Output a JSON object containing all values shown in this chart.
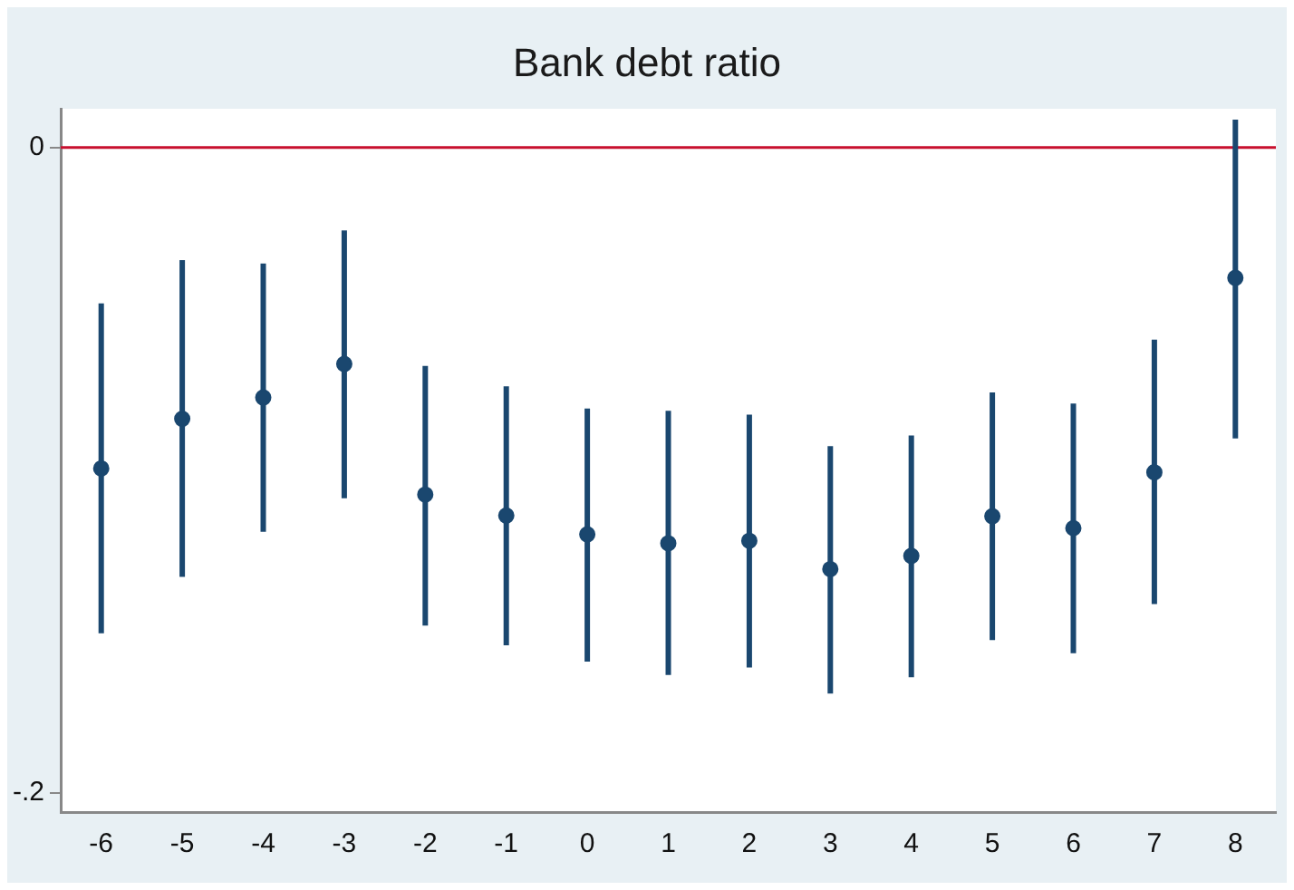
{
  "chart_data": {
    "type": "scatter",
    "title": "Bank debt ratio",
    "x": [
      -6,
      -5,
      -4,
      -3,
      -2,
      -1,
      0,
      1,
      2,
      3,
      4,
      5,
      6,
      7,
      8
    ],
    "values": [
      -0.0995,
      -0.0841,
      -0.0775,
      -0.0671,
      -0.1076,
      -0.1141,
      -0.1199,
      -0.1227,
      -0.1219,
      -0.1307,
      -0.1266,
      -0.1143,
      -0.118,
      -0.1007,
      -0.0404
    ],
    "errors": [
      [
        -0.1506,
        -0.0483
      ],
      [
        -0.1331,
        -0.0349
      ],
      [
        -0.1191,
        -0.036
      ],
      [
        -0.1087,
        -0.0257
      ],
      [
        -0.1482,
        -0.0677
      ],
      [
        -0.1543,
        -0.074
      ],
      [
        -0.1594,
        -0.0809
      ],
      [
        -0.1635,
        -0.0816
      ],
      [
        -0.1612,
        -0.0828
      ],
      [
        -0.1693,
        -0.0926
      ],
      [
        -0.1642,
        -0.0893
      ],
      [
        -0.1527,
        -0.0759
      ],
      [
        -0.1568,
        -0.0794
      ],
      [
        -0.1415,
        -0.0596
      ],
      [
        -0.0902,
        0.0086
      ]
    ],
    "color": "#1a476f",
    "marker": "circle",
    "xlim": [
      -6.5,
      8.5
    ],
    "xticks": [
      -6,
      -5,
      -4,
      -3,
      -2,
      -1,
      0,
      1,
      2,
      3,
      4,
      5,
      6,
      7,
      8
    ],
    "ylim": [
      -0.206,
      0.012
    ],
    "yticks": [
      {
        "value": -0.2,
        "label": "-.2"
      },
      0
    ],
    "legend": false,
    "ref_lines": [
      {
        "axis": "y",
        "value": 0,
        "color": "#c8102e"
      }
    ]
  }
}
